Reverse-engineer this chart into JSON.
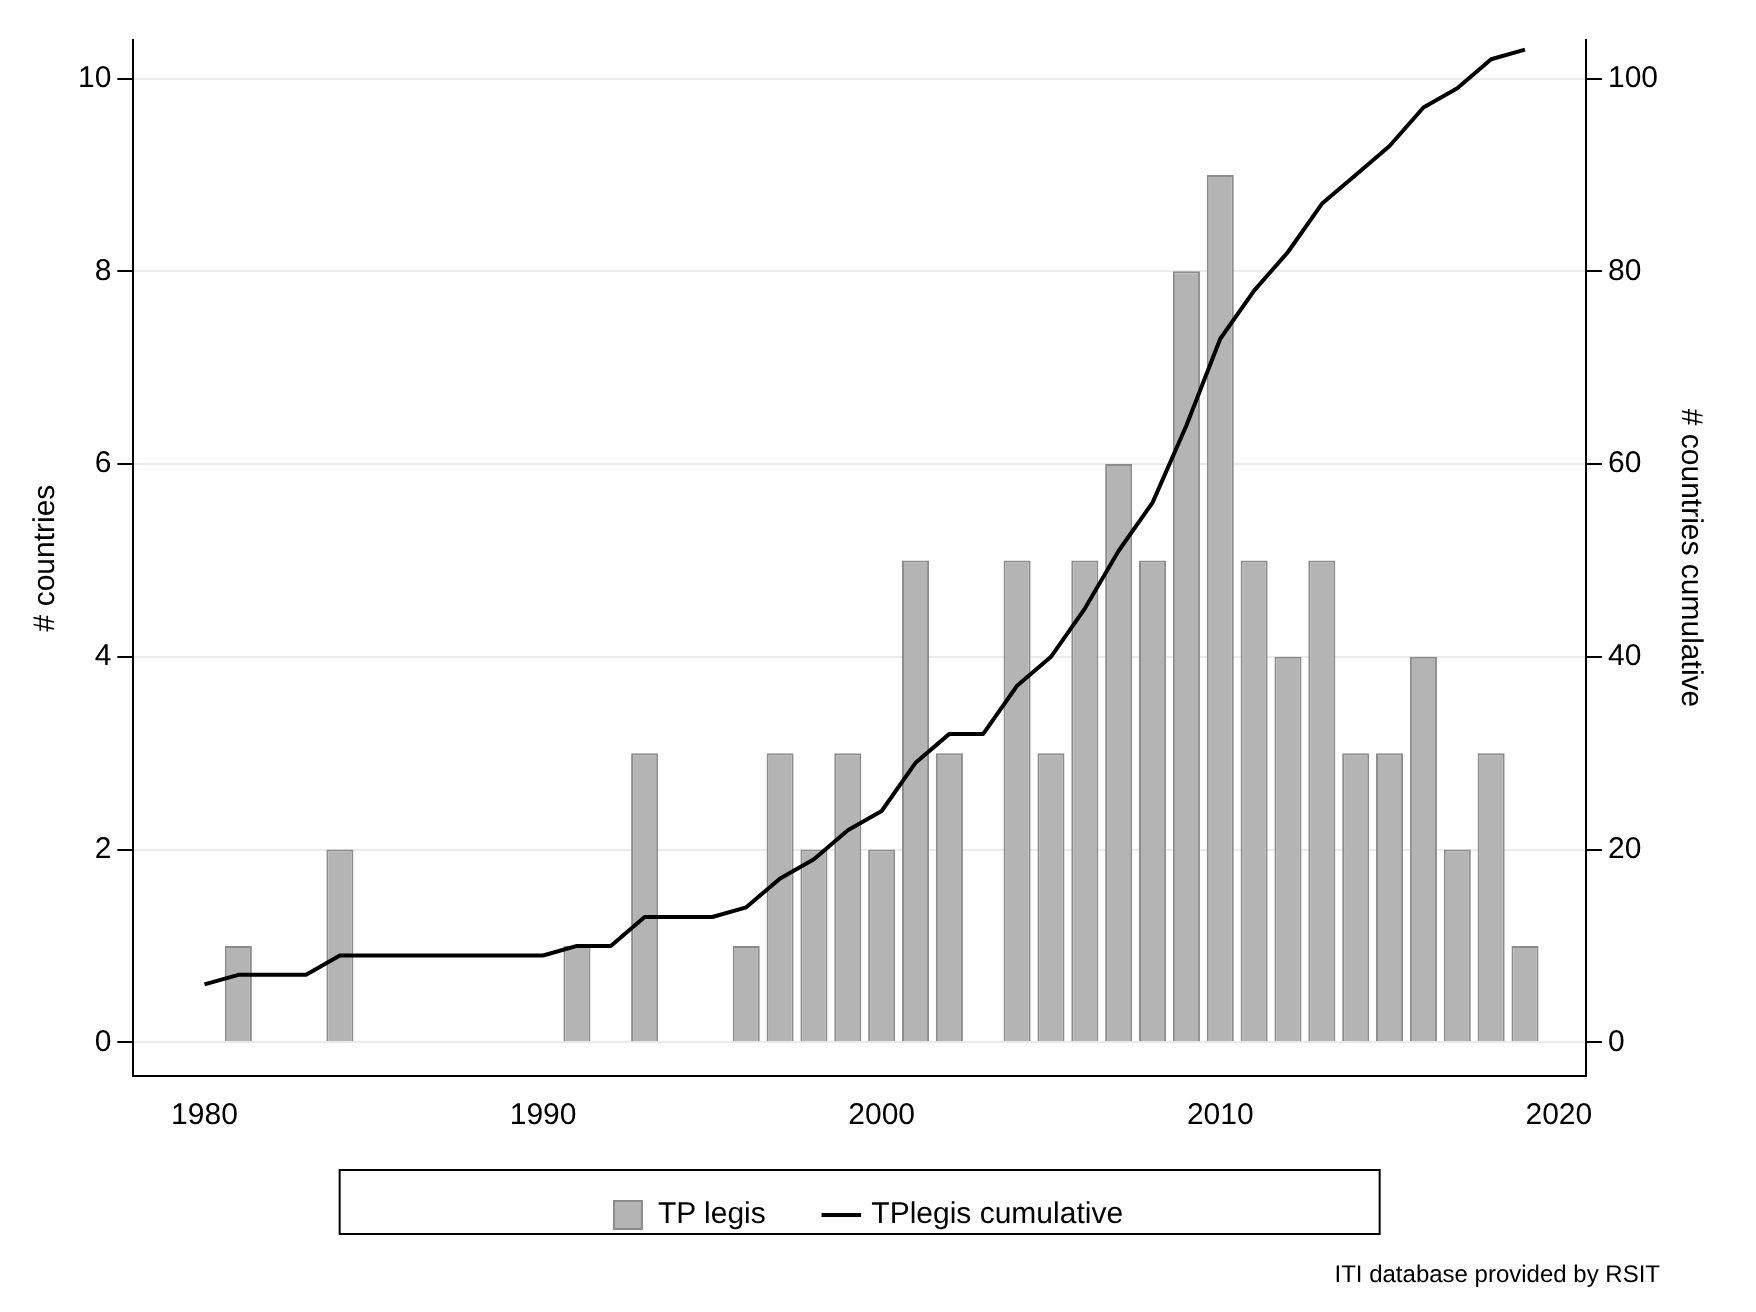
{
  "chart_data": {
    "type": "bar",
    "ylabel": "# countries",
    "y2label": "# countries cumulative",
    "xlim": [
      1977.9,
      2020.8
    ],
    "xticks": [
      1980,
      1990,
      2000,
      2010,
      2020
    ],
    "ylim": [
      -0.35,
      10.4
    ],
    "yticks": [
      0,
      2,
      4,
      6,
      8,
      10
    ],
    "y2lim": [
      -3.5,
      104
    ],
    "y2ticks": [
      0,
      20,
      40,
      60,
      80,
      100
    ],
    "grid": "y",
    "legend": "bottom",
    "series": [
      {
        "name": "TP legis",
        "color": "#b4b4b4",
        "x": [
          1981,
          1984,
          1991,
          1993,
          1996,
          1997,
          1998,
          1999,
          2000,
          2001,
          2002,
          2004,
          2005,
          2006,
          2007,
          2008,
          2009,
          2010,
          2011,
          2012,
          2013,
          2014,
          2015,
          2016,
          2017,
          2018,
          2019
        ],
        "values": [
          1,
          2,
          1,
          3,
          1,
          3,
          2,
          3,
          2,
          5,
          3,
          5,
          3,
          5,
          6,
          5,
          8,
          9,
          5,
          4,
          5,
          3,
          3,
          4,
          2,
          3,
          1
        ]
      },
      {
        "name": "TPlegis cumulative",
        "type": "line",
        "axis": "y2",
        "color": "#000000",
        "x": [
          1980,
          1981,
          1983,
          1984,
          1990,
          1991,
          1992,
          1993,
          1995,
          1996,
          1997,
          1998,
          1999,
          2000,
          2001,
          2002,
          2003,
          2004,
          2005,
          2006,
          2007,
          2008,
          2009,
          2010,
          2011,
          2012,
          2013,
          2014,
          2015,
          2016,
          2017,
          2018,
          2019
        ],
        "values": [
          6,
          7,
          7,
          9,
          9,
          10,
          10,
          13,
          13,
          14,
          17,
          19,
          22,
          24,
          29,
          32,
          32,
          37,
          40,
          45,
          51,
          56,
          64,
          73,
          78,
          82,
          87,
          90,
          93,
          97,
          99,
          102,
          103
        ]
      }
    ],
    "annotations": [
      "ITI database provided by RSIT"
    ]
  }
}
